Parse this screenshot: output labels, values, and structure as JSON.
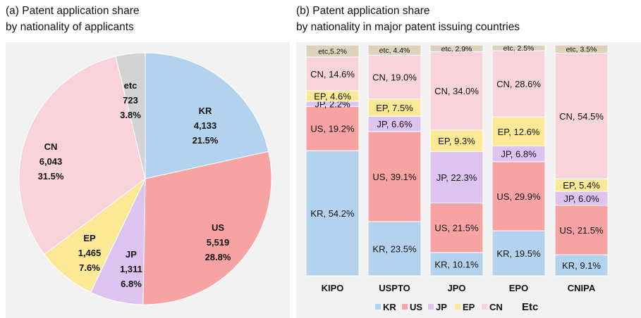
{
  "title_a_line1": "(a) Patent application share",
  "title_a_line2": "by nationality of applicants",
  "title_b_line1": "(b) Patent application share",
  "title_b_line2": "by nationality in major patent issuing countries",
  "colors": {
    "KR": "#b3d2ee",
    "US": "#f8a3a3",
    "JP": "#dcc3f0",
    "EP": "#fde995",
    "CN": "#f8d3dc",
    "Etc_pie": "#d3d3d3",
    "Etc_bar": "#ddd3bc"
  },
  "chart_data": [
    {
      "type": "pie",
      "slices": [
        {
          "name": "KR",
          "value": 4133,
          "value_label": "4,133",
          "percent": 21.5,
          "percent_label": "21.5%"
        },
        {
          "name": "US",
          "value": 5519,
          "value_label": "5,519",
          "percent": 28.8,
          "percent_label": "28.8%"
        },
        {
          "name": "JP",
          "value": 1311,
          "value_label": "1,311",
          "percent": 6.8,
          "percent_label": "6.8%"
        },
        {
          "name": "EP",
          "value": 1465,
          "value_label": "1,465",
          "percent": 7.6,
          "percent_label": "7.6%"
        },
        {
          "name": "CN",
          "value": 6043,
          "value_label": "6,043",
          "percent": 31.5,
          "percent_label": "31.5%"
        },
        {
          "name": "etc",
          "value": 723,
          "value_label": "723",
          "percent": 3.8,
          "percent_label": "3.8%"
        }
      ]
    },
    {
      "type": "bar",
      "stacked": true,
      "categories": [
        "KIPO",
        "USPTO",
        "JPO",
        "EPO",
        "CNIPA"
      ],
      "series": [
        {
          "name": "KR",
          "values": [
            54.2,
            23.5,
            10.1,
            19.5,
            9.1
          ]
        },
        {
          "name": "US",
          "values": [
            19.2,
            39.1,
            21.5,
            29.9,
            21.5
          ]
        },
        {
          "name": "JP",
          "values": [
            2.2,
            6.6,
            22.3,
            6.8,
            6.0
          ]
        },
        {
          "name": "EP",
          "values": [
            4.6,
            7.5,
            9.3,
            12.6,
            5.4
          ]
        },
        {
          "name": "CN",
          "values": [
            14.6,
            19.0,
            34.0,
            28.6,
            54.5
          ]
        },
        {
          "name": "Etc",
          "values": [
            5.2,
            4.4,
            2.9,
            2.5,
            3.5
          ]
        }
      ],
      "segment_labels": [
        [
          "KR, 54.2%",
          "US, 19.2%",
          "JP, 2.2%",
          "EP, 4.6%",
          "CN, 14.6%",
          "etc,5.2%"
        ],
        [
          "KR, 23.5%",
          "US, 39.1%",
          "JP, 6.6%",
          "EP, 7.5%",
          "CN, 19.0%",
          "etc, 4.4%"
        ],
        [
          "KR, 10.1%",
          "US, 21.5%",
          "JP, 22.3%",
          "EP, 9.3%",
          "CN, 34.0%",
          "etc, 2.9%"
        ],
        [
          "KR, 19.5%",
          "US, 29.9%",
          "JP, 6.8%",
          "EP, 12.6%",
          "CN, 28.6%",
          "etc, 2.5%"
        ],
        [
          "KR, 9.1%",
          "US, 21.5%",
          "JP, 6.0%",
          "EP, 5.4%",
          "CN, 54.5%",
          "etc, 3.5%"
        ]
      ],
      "legend": [
        "KR",
        "US",
        "JP",
        "EP",
        "CN",
        "Etc"
      ],
      "legend_position": "bottom"
    }
  ]
}
